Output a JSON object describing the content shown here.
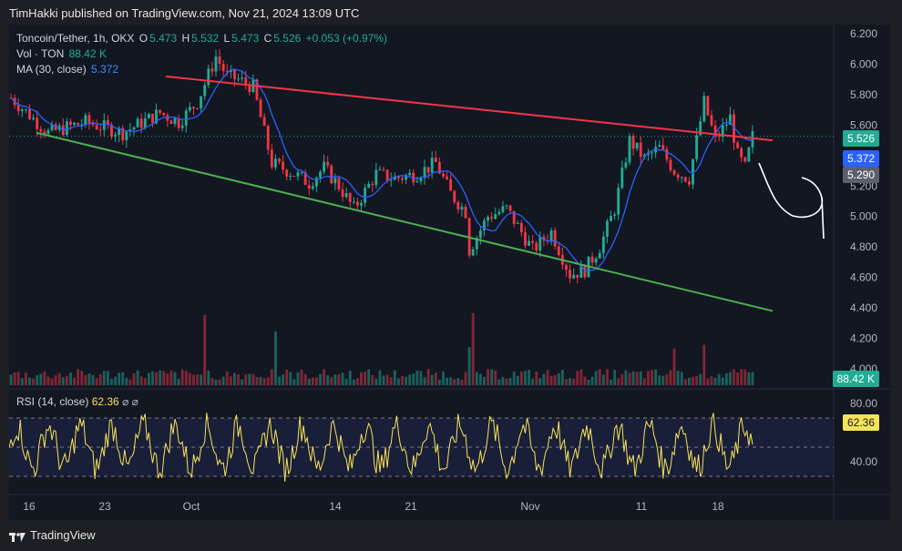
{
  "header": {
    "text": "TimHakki published on TradingView.com, Nov 21, 2024 13:09 UTC"
  },
  "legend": {
    "symbol": "Toncoin/Tether, 1h, OKX",
    "o_label": "O",
    "o": "5.473",
    "h_label": "H",
    "h": "5.532",
    "l_label": "L",
    "l": "5.473",
    "c_label": "C",
    "c": "5.526",
    "change": "+0.053 (+0.97%)",
    "vol_label": "Vol · TON",
    "vol": "88.42 K",
    "ma_label": "MA (30, close)",
    "ma": "5.372",
    "rsi_label": "RSI (14, close)",
    "rsi": "62.36",
    "rsi_extra": "⌀  ⌀"
  },
  "badges": {
    "price": "5.526",
    "ma": "5.372",
    "line": "5.290",
    "vol": "88.42 K",
    "rsi": "62.36"
  },
  "footer": {
    "brand": "TradingView"
  },
  "colors": {
    "up": "#22ab94",
    "down": "#f23645",
    "ma": "#2962ff",
    "resistance": "#f23645",
    "support": "#4caf50",
    "rsi": "#f7e35a",
    "badge_gray": "#5d606b",
    "rsi_band": "#1e2447"
  },
  "chart_data": {
    "type": "candlestick",
    "price_axis": {
      "ticks": [
        "6.200",
        "6.000",
        "5.800",
        "5.600",
        "5.400",
        "5.200",
        "5.000",
        "4.800",
        "4.600",
        "4.400",
        "4.200",
        "4.000"
      ],
      "ylim": [
        4.0,
        6.25
      ]
    },
    "time_axis": {
      "ticks": [
        "16",
        "23",
        "Oct",
        "14",
        "21",
        "Nov",
        "11",
        "18"
      ]
    },
    "rsi_axis": {
      "ticks": [
        "80.00",
        "40.00"
      ],
      "ylim": [
        20,
        85
      ],
      "band": [
        30,
        70
      ]
    },
    "price_path": [
      [
        0,
        5.78
      ],
      [
        10,
        5.55
      ],
      [
        20,
        5.62
      ],
      [
        30,
        5.55
      ],
      [
        40,
        5.68
      ],
      [
        45,
        5.62
      ],
      [
        50,
        5.75
      ],
      [
        55,
        6.05
      ],
      [
        58,
        5.92
      ],
      [
        61,
        5.9
      ],
      [
        65,
        5.85
      ],
      [
        70,
        5.35
      ],
      [
        76,
        5.28
      ],
      [
        80,
        5.22
      ],
      [
        84,
        5.32
      ],
      [
        88,
        5.2
      ],
      [
        92,
        5.05
      ],
      [
        98,
        5.28
      ],
      [
        103,
        5.25
      ],
      [
        109,
        5.28
      ],
      [
        114,
        5.35
      ],
      [
        118,
        5.15
      ],
      [
        122,
        5.03
      ],
      [
        123,
        4.78
      ],
      [
        128,
        5.0
      ],
      [
        133,
        5.05
      ],
      [
        140,
        4.78
      ],
      [
        145,
        4.9
      ],
      [
        150,
        4.62
      ],
      [
        154,
        4.65
      ],
      [
        158,
        4.8
      ],
      [
        162,
        5.05
      ],
      [
        166,
        5.5
      ],
      [
        170,
        5.38
      ],
      [
        174,
        5.45
      ],
      [
        178,
        5.3
      ],
      [
        182,
        5.25
      ],
      [
        186,
        5.75
      ],
      [
        189,
        5.5
      ],
      [
        193,
        5.65
      ],
      [
        195,
        5.4
      ],
      [
        197,
        5.32
      ],
      [
        199,
        5.526
      ]
    ],
    "resistance_line": {
      "start": [
        "Sep 26",
        5.92
      ],
      "end": [
        "Nov 21",
        5.5
      ]
    },
    "support_line": {
      "start": [
        "Sep 16",
        5.55
      ],
      "end": [
        "Nov 22",
        4.38
      ]
    }
  }
}
